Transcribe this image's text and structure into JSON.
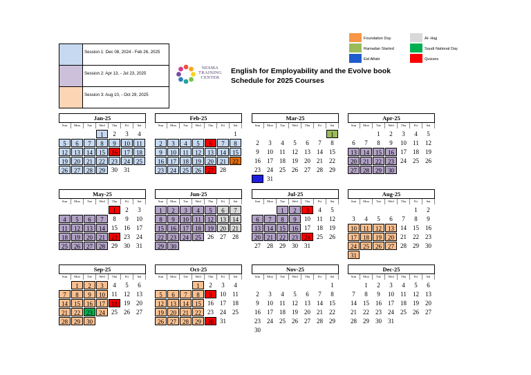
{
  "sessions": [
    {
      "label": "Session 1: Dec 08, 2024 - Feb 26, 2025",
      "color": "#c6d9f1"
    },
    {
      "label": "Session 2: Apr 13, - Jul 23, 2025",
      "color": "#ccc0da"
    },
    {
      "label": "Session 3: Aug 10, - Oct 29, 2025",
      "color": "#fcd5b5"
    }
  ],
  "logo_text": [
    "NESMA",
    "TRAINING",
    "CENTER"
  ],
  "title_lines": [
    "English for Employability and the Evolve book",
    "Schedule for 2025 Courses"
  ],
  "legend": [
    {
      "label": "Foundation Day",
      "color": "#f79646"
    },
    {
      "label": "Ramadan Started",
      "color": "#9bbb59"
    },
    {
      "label": "Eid Alfatir",
      "color": "#1f5ccc"
    },
    {
      "label": "Al- Hajj",
      "color": "#d9d9d9"
    },
    {
      "label": "Saudi National Day",
      "color": "#00b050"
    },
    {
      "label": "Quizzes",
      "color": "#ff0000"
    }
  ],
  "weekday_labels": [
    "Sun",
    "Mon",
    "Tue",
    "Wed",
    "Thu",
    "Fri",
    "Sat"
  ],
  "colors": {
    "s1": "#c6d9f1",
    "s2": "#b3a2c7",
    "s3": "#fac090",
    "quiz": "#ff0000",
    "found": "#e46c0a",
    "ram": "#9bbb59",
    "eid": "#1f1fdc",
    "hajj": "#d9d9d9",
    "nat": "#00b050"
  },
  "months": [
    {
      "name": "Jan-25",
      "start": 3,
      "days": 31,
      "marks": {
        "s1": [
          1,
          5,
          6,
          7,
          8,
          9,
          10,
          11,
          12,
          13,
          14,
          15,
          17,
          18,
          19,
          20,
          21,
          22,
          23,
          24,
          25,
          26,
          27,
          28,
          29
        ],
        "quiz": [
          16
        ]
      }
    },
    {
      "name": "Feb-25",
      "start": 6,
      "days": 28,
      "marks": {
        "s1": [
          2,
          3,
          4,
          5,
          7,
          8,
          9,
          10,
          11,
          12,
          13,
          14,
          15,
          16,
          17,
          18,
          19,
          20,
          21,
          23,
          24,
          25,
          26
        ],
        "quiz": [
          6,
          27
        ],
        "found": [
          22
        ]
      }
    },
    {
      "name": "Mar-25",
      "start": 6,
      "days": 31,
      "marks": {
        "ram": [
          1
        ],
        "eid": [
          30
        ]
      }
    },
    {
      "name": "Apr-25",
      "start": 2,
      "days": 30,
      "marks": {
        "s2": [
          13,
          14,
          15,
          16,
          20,
          21,
          22,
          23,
          27,
          28,
          29,
          30
        ]
      }
    },
    {
      "name": "May-25",
      "start": 4,
      "days": 31,
      "marks": {
        "s2": [
          4,
          5,
          6,
          7,
          11,
          12,
          13,
          14,
          18,
          19,
          20,
          21,
          25,
          26,
          27,
          28
        ],
        "quiz": [
          1,
          22
        ]
      }
    },
    {
      "name": "Jun-25",
      "start": 0,
      "days": 30,
      "marks": {
        "s2": [
          1,
          2,
          3,
          4,
          5,
          8,
          9,
          10,
          11,
          12,
          15,
          16,
          17,
          18,
          19,
          22,
          23,
          24,
          25,
          29,
          30
        ],
        "hajj": [
          6,
          7,
          13,
          14,
          20,
          21
        ]
      }
    },
    {
      "name": "Jul-25",
      "start": 2,
      "days": 31,
      "marks": {
        "s2": [
          1,
          2,
          6,
          7,
          8,
          9,
          13,
          14,
          15,
          16,
          20,
          21,
          22,
          23
        ],
        "quiz": [
          3,
          24
        ]
      }
    },
    {
      "name": "Aug-25",
      "start": 5,
      "days": 31,
      "marks": {
        "s3": [
          10,
          11,
          12,
          13,
          17,
          18,
          19,
          20,
          24,
          25,
          26,
          27,
          31
        ]
      }
    },
    {
      "name": "Sep-25",
      "start": 1,
      "days": 30,
      "marks": {
        "s3": [
          1,
          2,
          3,
          7,
          8,
          9,
          10,
          14,
          15,
          16,
          17,
          21,
          22,
          24,
          28,
          29,
          30
        ],
        "quiz": [
          18
        ],
        "nat": [
          23
        ]
      }
    },
    {
      "name": "Oct-25",
      "start": 3,
      "days": 31,
      "marks": {
        "s3": [
          1,
          5,
          6,
          7,
          8,
          12,
          13,
          14,
          15,
          19,
          20,
          21,
          22,
          26,
          27,
          28,
          29
        ],
        "quiz": [
          9,
          30
        ]
      }
    },
    {
      "name": "Nov-25",
      "start": 6,
      "days": 30,
      "marks": {}
    },
    {
      "name": "Dec-25",
      "start": 1,
      "days": 31,
      "marks": {}
    }
  ]
}
